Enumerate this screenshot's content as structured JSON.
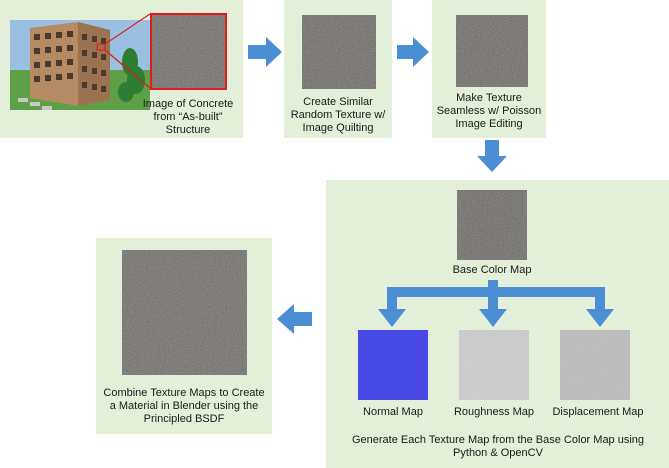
{
  "steps": {
    "step1": "Image of Concrete from “As-built” Structure",
    "step2": "Create Similar Random Texture w/ Image Quilting",
    "step3": "Make Texture Seamless w/ Poisson Image Editing",
    "base": "Base Color Map",
    "generate": "Generate Each Texture Map from the Base Color Map using Python & OpenCV",
    "combine": "Combine Texture Maps to Create a Material in Blender using the Principled BSDF"
  },
  "maps": {
    "normal": "Normal Map",
    "roughness": "Roughness Map",
    "displacement": "Displacement Map"
  },
  "colors": {
    "panel": "#e3efd9",
    "arrow": "#4a8fd4",
    "highlight": "#e01b1b",
    "concrete": "#6e6b67",
    "normal_map": "#3f3fd6",
    "roughness_map": "#cfcfcf",
    "displacement_map": "#bdbdbd"
  }
}
